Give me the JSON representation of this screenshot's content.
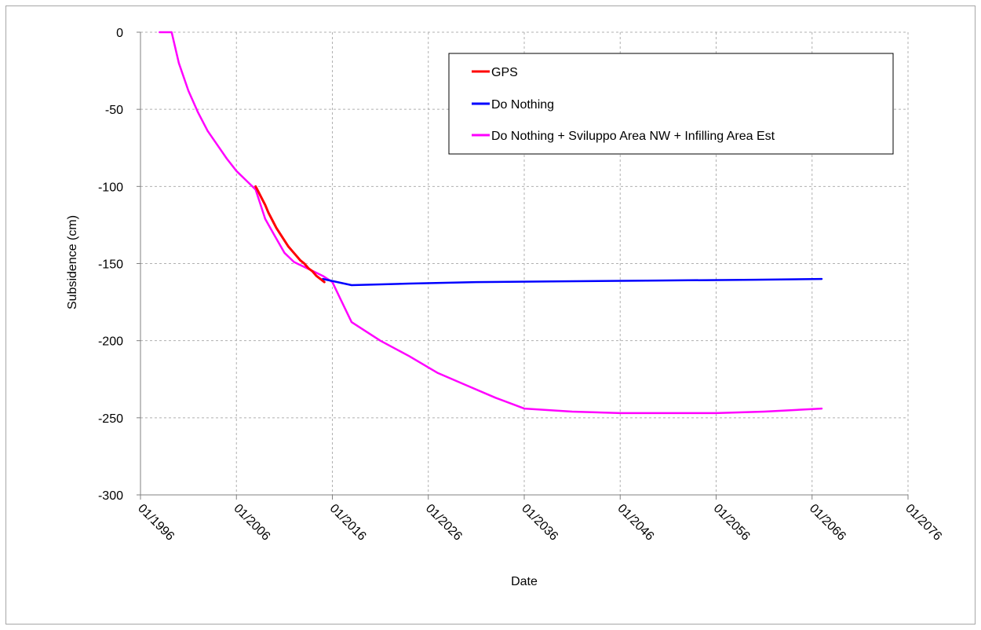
{
  "chart_data": {
    "type": "line",
    "title": "",
    "xlabel": "Date",
    "ylabel": "Subsidence (cm)",
    "x_axis_kind": "date",
    "xlim": [
      "1996-01",
      "2076-01"
    ],
    "x_ticks": [
      "01/1996",
      "01/2006",
      "01/2016",
      "01/2026",
      "01/2036",
      "01/2046",
      "01/2056",
      "01/2066",
      "01/2076"
    ],
    "ylim": [
      -300,
      0
    ],
    "y_ticks": [
      0,
      -50,
      -100,
      -150,
      -200,
      -250,
      -300
    ],
    "grid": true,
    "legend_position": "top-right",
    "series": [
      {
        "name": "GPS",
        "color": "#ff0000",
        "points": [
          [
            "2008-01",
            -100
          ],
          [
            "2008-04",
            -103
          ],
          [
            "2008-08",
            -107
          ],
          [
            "2009-01",
            -112
          ],
          [
            "2009-05",
            -117
          ],
          [
            "2009-10",
            -122
          ],
          [
            "2010-03",
            -127
          ],
          [
            "2010-08",
            -131
          ],
          [
            "2011-01",
            -135
          ],
          [
            "2011-06",
            -139
          ],
          [
            "2011-11",
            -142
          ],
          [
            "2012-04",
            -145
          ],
          [
            "2012-09",
            -148
          ],
          [
            "2013-02",
            -150
          ],
          [
            "2013-07",
            -153
          ],
          [
            "2013-12",
            -155
          ],
          [
            "2014-05",
            -158
          ],
          [
            "2014-10",
            -160
          ],
          [
            "2015-03",
            -162
          ]
        ]
      },
      {
        "name": "Do Nothing",
        "color": "#0000ff",
        "points": [
          [
            "2015-01",
            -160
          ],
          [
            "2018-01",
            -164
          ],
          [
            "2024-01",
            -163
          ],
          [
            "2031-01",
            -162
          ],
          [
            "2040-01",
            -161.5
          ],
          [
            "2050-01",
            -161
          ],
          [
            "2060-01",
            -160.5
          ],
          [
            "2067-01",
            -160
          ]
        ]
      },
      {
        "name": "Do Nothing + Sviluppo Area NW + Infilling Area Est",
        "color": "#ff00ff",
        "points": [
          [
            "1998-01",
            0
          ],
          [
            "1999-04",
            0
          ],
          [
            "2000-01",
            -20
          ],
          [
            "2001-01",
            -38
          ],
          [
            "2002-01",
            -52
          ],
          [
            "2003-01",
            -64
          ],
          [
            "2004-01",
            -73
          ],
          [
            "2005-01",
            -82
          ],
          [
            "2006-01",
            -90
          ],
          [
            "2007-01",
            -96
          ],
          [
            "2008-01",
            -102
          ],
          [
            "2009-01",
            -121
          ],
          [
            "2010-01",
            -132
          ],
          [
            "2011-01",
            -143
          ],
          [
            "2012-01",
            -149
          ],
          [
            "2013-01",
            -152
          ],
          [
            "2014-01",
            -155
          ],
          [
            "2015-01",
            -158
          ],
          [
            "2016-01",
            -162
          ],
          [
            "2017-01",
            -175
          ],
          [
            "2018-01",
            -188
          ],
          [
            "2021-01",
            -200
          ],
          [
            "2024-01",
            -210
          ],
          [
            "2027-01",
            -221
          ],
          [
            "2030-01",
            -229
          ],
          [
            "2033-01",
            -237
          ],
          [
            "2036-01",
            -244
          ],
          [
            "2041-01",
            -246
          ],
          [
            "2046-01",
            -247
          ],
          [
            "2051-01",
            -247
          ],
          [
            "2056-01",
            -247
          ],
          [
            "2061-01",
            -246
          ],
          [
            "2067-01",
            -244
          ]
        ]
      }
    ]
  }
}
